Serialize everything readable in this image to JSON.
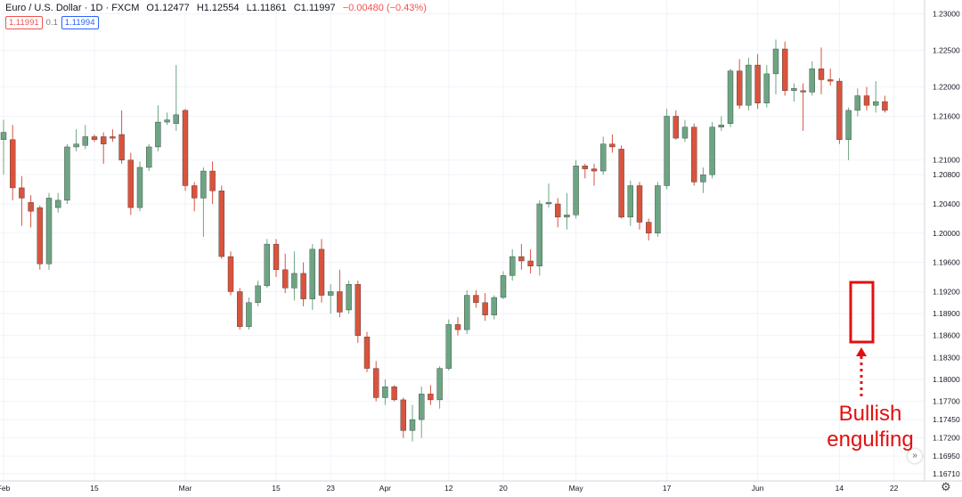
{
  "header": {
    "symbol": "Euro / U.S. Dollar · 1D · FXCM",
    "open": "O1.12477",
    "high": "H1.12554",
    "low": "L1.11861",
    "close": "C1.11997",
    "change": "−0.00480 (−0.43%)",
    "bid": "1.11991",
    "spread": "0.1",
    "ask": "1.11994"
  },
  "annotation": {
    "line1": "Bullish",
    "line2": "engulfing"
  },
  "colors": {
    "up": "#6ca583",
    "down": "#d9533d",
    "highlight": "#e01010",
    "grid": "#f0f3fa"
  },
  "icons": {
    "settings": "gear-icon",
    "scroll": "double-chevron-icon"
  },
  "chart_data": {
    "type": "candlestick",
    "title": "",
    "xlabel": "",
    "ylabel": "",
    "ylim": [
      1.1661,
      1.2319
    ],
    "y_ticks": [
      "1.23000",
      "1.22500",
      "1.22000",
      "1.21600",
      "1.21000",
      "1.20800",
      "1.20400",
      "1.20000",
      "1.19600",
      "1.19200",
      "1.18900",
      "1.18600",
      "1.18300",
      "1.18000",
      "1.17700",
      "1.17450",
      "1.17200",
      "1.16950",
      "1.16710"
    ],
    "x_ticks": [
      {
        "label": "Feb",
        "index": 0
      },
      {
        "label": "15",
        "index": 10
      },
      {
        "label": "Mar",
        "index": 20
      },
      {
        "label": "15",
        "index": 30
      },
      {
        "label": "23",
        "index": 36
      },
      {
        "label": "Apr",
        "index": 42
      },
      {
        "label": "12",
        "index": 49
      },
      {
        "label": "20",
        "index": 55
      },
      {
        "label": "May",
        "index": 63
      },
      {
        "label": "17",
        "index": 73
      },
      {
        "label": "Jun",
        "index": 83
      },
      {
        "label": "14",
        "index": 92
      },
      {
        "label": "22",
        "index": 98
      }
    ],
    "candles": [
      {
        "o": 1.2128,
        "h": 1.2155,
        "l": 1.208,
        "c": 1.2138
      },
      {
        "o": 1.2128,
        "h": 1.2148,
        "l": 1.2045,
        "c": 1.2062
      },
      {
        "o": 1.2062,
        "h": 1.2078,
        "l": 1.201,
        "c": 1.2048
      },
      {
        "o": 1.2042,
        "h": 1.2052,
        "l": 1.2008,
        "c": 1.203
      },
      {
        "o": 1.2035,
        "h": 1.2038,
        "l": 1.195,
        "c": 1.1958
      },
      {
        "o": 1.1958,
        "h": 1.2055,
        "l": 1.195,
        "c": 1.2048
      },
      {
        "o": 1.2035,
        "h": 1.2055,
        "l": 1.2028,
        "c": 1.2045
      },
      {
        "o": 1.2045,
        "h": 1.2122,
        "l": 1.204,
        "c": 1.2118
      },
      {
        "o": 1.2118,
        "h": 1.2142,
        "l": 1.2112,
        "c": 1.2122
      },
      {
        "o": 1.212,
        "h": 1.2148,
        "l": 1.2115,
        "c": 1.2132
      },
      {
        "o": 1.2132,
        "h": 1.2135,
        "l": 1.2125,
        "c": 1.2128
      },
      {
        "o": 1.2132,
        "h": 1.2138,
        "l": 1.2095,
        "c": 1.2122
      },
      {
        "o": 1.2132,
        "h": 1.2142,
        "l": 1.2125,
        "c": 1.213
      },
      {
        "o": 1.2135,
        "h": 1.2168,
        "l": 1.2095,
        "c": 1.21
      },
      {
        "o": 1.21,
        "h": 1.211,
        "l": 1.2025,
        "c": 1.2035
      },
      {
        "o": 1.2035,
        "h": 1.2098,
        "l": 1.203,
        "c": 1.209
      },
      {
        "o": 1.209,
        "h": 1.2122,
        "l": 1.2085,
        "c": 1.2118
      },
      {
        "o": 1.2118,
        "h": 1.2175,
        "l": 1.2112,
        "c": 1.2152
      },
      {
        "o": 1.2152,
        "h": 1.2165,
        "l": 1.2148,
        "c": 1.2155
      },
      {
        "o": 1.215,
        "h": 1.223,
        "l": 1.214,
        "c": 1.2162
      },
      {
        "o": 1.2168,
        "h": 1.217,
        "l": 1.2058,
        "c": 1.2065
      },
      {
        "o": 1.2065,
        "h": 1.207,
        "l": 1.203,
        "c": 1.2048
      },
      {
        "o": 1.2048,
        "h": 1.209,
        "l": 1.1995,
        "c": 1.2085
      },
      {
        "o": 1.2085,
        "h": 1.2098,
        "l": 1.204,
        "c": 1.2058
      },
      {
        "o": 1.2058,
        "h": 1.2065,
        "l": 1.1965,
        "c": 1.1968
      },
      {
        "o": 1.1968,
        "h": 1.1975,
        "l": 1.1915,
        "c": 1.192
      },
      {
        "o": 1.192,
        "h": 1.1925,
        "l": 1.1868,
        "c": 1.1872
      },
      {
        "o": 1.1872,
        "h": 1.1912,
        "l": 1.1868,
        "c": 1.1905
      },
      {
        "o": 1.1905,
        "h": 1.1935,
        "l": 1.19,
        "c": 1.1928
      },
      {
        "o": 1.1928,
        "h": 1.1992,
        "l": 1.1925,
        "c": 1.1985
      },
      {
        "o": 1.1985,
        "h": 1.1992,
        "l": 1.194,
        "c": 1.195
      },
      {
        "o": 1.195,
        "h": 1.1972,
        "l": 1.1918,
        "c": 1.1925
      },
      {
        "o": 1.1925,
        "h": 1.1975,
        "l": 1.1908,
        "c": 1.1945
      },
      {
        "o": 1.1945,
        "h": 1.196,
        "l": 1.19,
        "c": 1.191
      },
      {
        "o": 1.191,
        "h": 1.1985,
        "l": 1.1895,
        "c": 1.1978
      },
      {
        "o": 1.1978,
        "h": 1.1992,
        "l": 1.1905,
        "c": 1.1915
      },
      {
        "o": 1.1915,
        "h": 1.193,
        "l": 1.189,
        "c": 1.192
      },
      {
        "o": 1.192,
        "h": 1.195,
        "l": 1.1885,
        "c": 1.1892
      },
      {
        "o": 1.1895,
        "h": 1.1935,
        "l": 1.189,
        "c": 1.193
      },
      {
        "o": 1.193,
        "h": 1.1935,
        "l": 1.185,
        "c": 1.186
      },
      {
        "o": 1.1858,
        "h": 1.1865,
        "l": 1.181,
        "c": 1.1815
      },
      {
        "o": 1.1815,
        "h": 1.1825,
        "l": 1.177,
        "c": 1.1775
      },
      {
        "o": 1.1775,
        "h": 1.18,
        "l": 1.1765,
        "c": 1.179
      },
      {
        "o": 1.179,
        "h": 1.1792,
        "l": 1.177,
        "c": 1.1772
      },
      {
        "o": 1.1772,
        "h": 1.1775,
        "l": 1.172,
        "c": 1.173
      },
      {
        "o": 1.173,
        "h": 1.1765,
        "l": 1.1715,
        "c": 1.1745
      },
      {
        "o": 1.1745,
        "h": 1.179,
        "l": 1.172,
        "c": 1.178
      },
      {
        "o": 1.178,
        "h": 1.1792,
        "l": 1.1765,
        "c": 1.1772
      },
      {
        "o": 1.1772,
        "h": 1.1818,
        "l": 1.176,
        "c": 1.1815
      },
      {
        "o": 1.1815,
        "h": 1.1882,
        "l": 1.1812,
        "c": 1.1875
      },
      {
        "o": 1.1875,
        "h": 1.1885,
        "l": 1.186,
        "c": 1.1868
      },
      {
        "o": 1.1868,
        "h": 1.1922,
        "l": 1.1862,
        "c": 1.1915
      },
      {
        "o": 1.1915,
        "h": 1.1922,
        "l": 1.1898,
        "c": 1.1905
      },
      {
        "o": 1.1905,
        "h": 1.1918,
        "l": 1.188,
        "c": 1.1888
      },
      {
        "o": 1.1888,
        "h": 1.1915,
        "l": 1.1882,
        "c": 1.1912
      },
      {
        "o": 1.1912,
        "h": 1.1948,
        "l": 1.191,
        "c": 1.1942
      },
      {
        "o": 1.1942,
        "h": 1.1978,
        "l": 1.1935,
        "c": 1.1968
      },
      {
        "o": 1.1968,
        "h": 1.1985,
        "l": 1.195,
        "c": 1.1962
      },
      {
        "o": 1.1962,
        "h": 1.1978,
        "l": 1.1945,
        "c": 1.1955
      },
      {
        "o": 1.1955,
        "h": 1.2045,
        "l": 1.1942,
        "c": 1.204
      },
      {
        "o": 1.204,
        "h": 1.2068,
        "l": 1.2035,
        "c": 1.2042
      },
      {
        "o": 1.204,
        "h": 1.2048,
        "l": 1.2008,
        "c": 1.2022
      },
      {
        "o": 1.2022,
        "h": 1.2055,
        "l": 1.2005,
        "c": 1.2025
      },
      {
        "o": 1.2025,
        "h": 1.21,
        "l": 1.202,
        "c": 1.2092
      },
      {
        "o": 1.2092,
        "h": 1.2095,
        "l": 1.2075,
        "c": 1.2088
      },
      {
        "o": 1.2088,
        "h": 1.2095,
        "l": 1.2065,
        "c": 1.2085
      },
      {
        "o": 1.2085,
        "h": 1.2132,
        "l": 1.208,
        "c": 1.2122
      },
      {
        "o": 1.2122,
        "h": 1.2135,
        "l": 1.211,
        "c": 1.2118
      },
      {
        "o": 1.2115,
        "h": 1.212,
        "l": 1.202,
        "c": 1.2022
      },
      {
        "o": 1.2022,
        "h": 1.2072,
        "l": 1.201,
        "c": 1.2065
      },
      {
        "o": 1.2065,
        "h": 1.207,
        "l": 1.2005,
        "c": 1.2015
      },
      {
        "o": 1.2015,
        "h": 1.202,
        "l": 1.199,
        "c": 1.2
      },
      {
        "o": 1.2,
        "h": 1.207,
        "l": 1.1995,
        "c": 1.2065
      },
      {
        "o": 1.2065,
        "h": 1.217,
        "l": 1.206,
        "c": 1.216
      },
      {
        "o": 1.216,
        "h": 1.2168,
        "l": 1.2128,
        "c": 1.213
      },
      {
        "o": 1.213,
        "h": 1.2155,
        "l": 1.2125,
        "c": 1.2145
      },
      {
        "o": 1.2145,
        "h": 1.215,
        "l": 1.2065,
        "c": 1.207
      },
      {
        "o": 1.207,
        "h": 1.209,
        "l": 1.2055,
        "c": 1.208
      },
      {
        "o": 1.208,
        "h": 1.2152,
        "l": 1.2075,
        "c": 1.2145
      },
      {
        "o": 1.2145,
        "h": 1.216,
        "l": 1.214,
        "c": 1.2148
      },
      {
        "o": 1.215,
        "h": 1.2225,
        "l": 1.2145,
        "c": 1.2222
      },
      {
        "o": 1.2222,
        "h": 1.2238,
        "l": 1.217,
        "c": 1.2175
      },
      {
        "o": 1.2175,
        "h": 1.224,
        "l": 1.2168,
        "c": 1.223
      },
      {
        "o": 1.223,
        "h": 1.2245,
        "l": 1.217,
        "c": 1.2178
      },
      {
        "o": 1.2178,
        "h": 1.223,
        "l": 1.2172,
        "c": 1.2218
      },
      {
        "o": 1.2218,
        "h": 1.2265,
        "l": 1.219,
        "c": 1.2252
      },
      {
        "o": 1.2252,
        "h": 1.2262,
        "l": 1.2188,
        "c": 1.2195
      },
      {
        "o": 1.2195,
        "h": 1.2205,
        "l": 1.218,
        "c": 1.2198
      },
      {
        "o": 1.2195,
        "h": 1.2205,
        "l": 1.214,
        "c": 1.2193
      },
      {
        "o": 1.2193,
        "h": 1.2235,
        "l": 1.2188,
        "c": 1.2225
      },
      {
        "o": 1.2225,
        "h": 1.2254,
        "l": 1.219,
        "c": 1.221
      },
      {
        "o": 1.221,
        "h": 1.2225,
        "l": 1.2202,
        "c": 1.2208
      },
      {
        "o": 1.2208,
        "h": 1.2212,
        "l": 1.2122,
        "c": 1.2128
      },
      {
        "o": 1.2128,
        "h": 1.2172,
        "l": 1.21,
        "c": 1.2168
      },
      {
        "o": 1.2168,
        "h": 1.2198,
        "l": 1.216,
        "c": 1.2188
      },
      {
        "o": 1.2188,
        "h": 1.22,
        "l": 1.2168,
        "c": 1.2175
      },
      {
        "o": 1.2175,
        "h": 1.2208,
        "l": 1.2165,
        "c": 1.218
      },
      {
        "o": 1.218,
        "h": 1.2188,
        "l": 1.2165,
        "c": 1.2168
      }
    ]
  }
}
